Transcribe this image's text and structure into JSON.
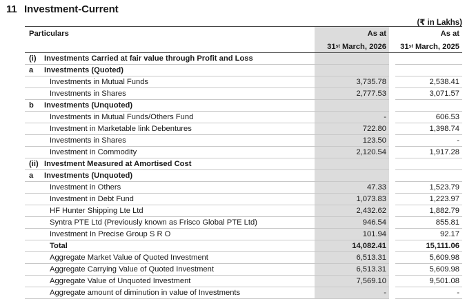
{
  "note": {
    "number": "11",
    "title": "Investment-Current",
    "units": "(₹ in Lakhs)"
  },
  "table": {
    "particulars_header": "Particulars",
    "col_current": {
      "as_at": "As at",
      "day": "31",
      "suffix": "st",
      "date": "March, 2026"
    },
    "col_previous": {
      "as_at": "As at",
      "day": "31",
      "suffix": "st",
      "date": "March, 2025"
    },
    "rows": [
      {
        "idx": "(i)",
        "label": "Investments Carried at fair value through Profit and Loss",
        "cur": "",
        "prev": "",
        "kind": "section"
      },
      {
        "idx": "a",
        "label": "Investments (Quoted)",
        "cur": "",
        "prev": "",
        "kind": "section"
      },
      {
        "idx": "",
        "label": "Investments in Mutual Funds",
        "cur": "3,735.78",
        "prev": "2,538.41",
        "kind": "item"
      },
      {
        "idx": "",
        "label": "Investments in Shares",
        "cur": "2,777.53",
        "prev": "3,071.57",
        "kind": "item"
      },
      {
        "idx": "b",
        "label": "Investments (Unquoted)",
        "cur": "",
        "prev": "",
        "kind": "section"
      },
      {
        "idx": "",
        "label": "Investments in Mutual Funds/Others Fund",
        "cur": "-",
        "prev": "606.53",
        "kind": "item"
      },
      {
        "idx": "",
        "label": "Investment in Marketable link Debentures",
        "cur": "722.80",
        "prev": "1,398.74",
        "kind": "item"
      },
      {
        "idx": "",
        "label": "Investments in Shares",
        "cur": "123.50",
        "prev": "-",
        "kind": "item"
      },
      {
        "idx": "",
        "label": "Investment in Commodity",
        "cur": "2,120.54",
        "prev": "1,917.28",
        "kind": "item"
      },
      {
        "idx": "(ii)",
        "label": "Investment Measured at Amortised Cost",
        "cur": "",
        "prev": "",
        "kind": "section"
      },
      {
        "idx": "a",
        "label": "Investments (Unquoted)",
        "cur": "",
        "prev": "",
        "kind": "section"
      },
      {
        "idx": "",
        "label": "Investment in Others",
        "cur": "47.33",
        "prev": "1,523.79",
        "kind": "item"
      },
      {
        "idx": "",
        "label": "Investment in Debt Fund",
        "cur": "1,073.83",
        "prev": "1,223.97",
        "kind": "item"
      },
      {
        "idx": "",
        "label": "HF Hunter Shipping Lte Ltd",
        "cur": "2,432.62",
        "prev": "1,882.79",
        "kind": "item"
      },
      {
        "idx": "",
        "label": "Syntra PTE Ltd (Previously known as Frisco Global PTE Ltd)",
        "cur": "946.54",
        "prev": "855.81",
        "kind": "item"
      },
      {
        "idx": "",
        "label": "Investment In Precise Group S R O",
        "cur": "101.94",
        "prev": "92.17",
        "kind": "item"
      },
      {
        "idx": "",
        "label": "Total",
        "cur": "14,082.41",
        "prev": "15,111.06",
        "kind": "total"
      },
      {
        "idx": "",
        "label": "Aggregate Market Value of Quoted Investment",
        "cur": "6,513.31",
        "prev": "5,609.98",
        "kind": "item"
      },
      {
        "idx": "",
        "label": "Aggregate Carrying Value of Quoted Investment",
        "cur": "6,513.31",
        "prev": "5,609.98",
        "kind": "item"
      },
      {
        "idx": "",
        "label": "Aggregate Value of Unquoted Investment",
        "cur": "7,569.10",
        "prev": "9,501.08",
        "kind": "item"
      },
      {
        "idx": "",
        "label": "Aggregate amount of diminution in value of Investments",
        "cur": "-",
        "prev": "-",
        "kind": "item"
      }
    ]
  }
}
